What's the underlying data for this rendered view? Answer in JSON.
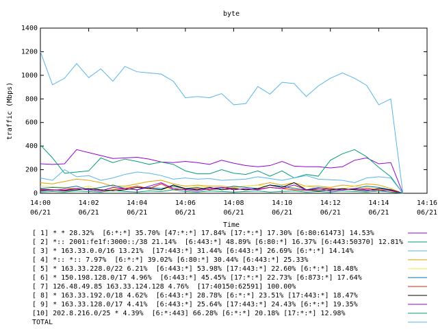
{
  "chart_data": {
    "type": "line",
    "title": "byte",
    "x_label": "Time",
    "y_label": "traffic (Mbps)",
    "xlim": [
      0,
      16
    ],
    "ylim": [
      0,
      1400
    ],
    "xticks": [
      {
        "value": 0,
        "label": [
          "14:00",
          "06/21"
        ]
      },
      {
        "value": 2,
        "label": [
          "14:02",
          "06/21"
        ]
      },
      {
        "value": 4,
        "label": [
          "14:04",
          "06/21"
        ]
      },
      {
        "value": 6,
        "label": [
          "14:06",
          "06/21"
        ]
      },
      {
        "value": 8,
        "label": [
          "14:08",
          "06/21"
        ]
      },
      {
        "value": 10,
        "label": [
          "14:10",
          "06/21"
        ]
      },
      {
        "value": 12,
        "label": [
          "14:12",
          "06/21"
        ]
      },
      {
        "value": 14,
        "label": [
          "14:14",
          "06/21"
        ]
      },
      {
        "value": 16,
        "label": [
          "14:16",
          "06/21"
        ]
      }
    ],
    "yticks": [
      0,
      200,
      400,
      600,
      800,
      1000,
      1200,
      1400
    ],
    "x": [
      0,
      0.5,
      1,
      1.5,
      2,
      2.5,
      3,
      3.5,
      4,
      4.5,
      5,
      5.5,
      6,
      6.5,
      7,
      7.5,
      8,
      8.5,
      9,
      9.5,
      10,
      10.5,
      11,
      11.5,
      12,
      12.5,
      13,
      13.5,
      14,
      14.5,
      15
    ],
    "series": [
      {
        "name": "[ 1] * * 28.32%  [6:*:*] 35.70% [47:*:*] 17.84% [17:*:*] 17.30% [6:80:61473] 14.53%",
        "color": "#9400d3",
        "values": [
          250,
          245,
          250,
          370,
          345,
          320,
          295,
          300,
          305,
          290,
          265,
          260,
          270,
          260,
          245,
          280,
          255,
          235,
          225,
          235,
          270,
          230,
          225,
          225,
          215,
          225,
          280,
          300,
          250,
          260,
          0
        ]
      },
      {
        "name": "[ 2] *:: 2001:fe1f:3000::/38 21.14%  [6:443:*] 48.89% [6:80:*] 16.37% [6:443:50370] 12.81%",
        "color": "#009e73",
        "values": [
          410,
          300,
          170,
          180,
          190,
          300,
          260,
          290,
          270,
          245,
          265,
          245,
          190,
          165,
          165,
          200,
          170,
          160,
          190,
          145,
          190,
          130,
          160,
          145,
          280,
          335,
          370,
          310,
          220,
          140,
          0
        ]
      },
      {
        "name": "[ 3] * 163.33.0.0/16 13.21%  [17:443:*] 31.44% [6:443:*] 26.69% [6:*:*] 14.14%",
        "color": "#56b4e9",
        "values": [
          130,
          110,
          200,
          140,
          150,
          110,
          130,
          160,
          180,
          170,
          150,
          120,
          130,
          120,
          125,
          110,
          115,
          120,
          140,
          125,
          110,
          130,
          150,
          120,
          115,
          110,
          90,
          130,
          140,
          130,
          0
        ]
      },
      {
        "name": "[ 4] *:: *:: 7.97%  [6:*:*] 39.02% [6:80:*] 30.44% [6:443:*] 25.33%",
        "color": "#e69f00",
        "values": [
          90,
          80,
          100,
          120,
          110,
          90,
          60,
          60,
          80,
          100,
          110,
          80,
          60,
          70,
          60,
          60,
          50,
          60,
          70,
          90,
          70,
          90,
          60,
          60,
          50,
          70,
          60,
          80,
          70,
          40,
          0
        ]
      },
      {
        "name": "[ 5] * 163.33.228.0/22 6.21%  [6:443:*] 53.98% [17:443:*] 22.60% [6:*:*] 18.48%",
        "color": "#f0e442",
        "values": [
          60,
          55,
          50,
          40,
          60,
          30,
          40,
          50,
          60,
          40,
          30,
          50,
          40,
          60,
          50,
          30,
          40,
          60,
          70,
          50,
          40,
          50,
          60,
          40,
          30,
          40,
          60,
          50,
          40,
          30,
          0
        ]
      },
      {
        "name": "[ 6] * 150.198.128.0/17 4.96%  [6:443:*] 45.45% [17:*:*] 22.73% [6:873:*] 17.64%",
        "color": "#0072b2",
        "values": [
          40,
          50,
          45,
          60,
          30,
          50,
          70,
          40,
          30,
          50,
          40,
          60,
          40,
          50,
          30,
          40,
          60,
          50,
          40,
          70,
          60,
          40,
          30,
          50,
          40,
          30,
          40,
          60,
          50,
          30,
          0
        ]
      },
      {
        "name": "[ 7] 126.48.49.85 163.33.124.128 4.76%  [17:40150:62591] 100.00%",
        "color": "#e51e10",
        "values": [
          30,
          25,
          35,
          40,
          30,
          20,
          30,
          40,
          60,
          40,
          80,
          30,
          35,
          40,
          30,
          50,
          40,
          30,
          35,
          50,
          40,
          30,
          25,
          35,
          40,
          30,
          35,
          40,
          30,
          20,
          0
        ]
      },
      {
        "name": "[ 8] * 163.33.192.0/18 4.62%  [6:443:*] 28.78% [6:*:*] 23.51% [17:443:*] 18.47%",
        "color": "#000000",
        "values": [
          20,
          30,
          20,
          30,
          40,
          30,
          20,
          30,
          50,
          40,
          30,
          70,
          40,
          30,
          50,
          30,
          40,
          30,
          40,
          70,
          50,
          90,
          30,
          20,
          30,
          40,
          30,
          20,
          40,
          30,
          0
        ]
      },
      {
        "name": "[ 9] * 163.33.128.0/17 4.41%  [6:443:*] 25.64% [17:443:*] 24.43% [6:*:*] 19.35%",
        "color": "#9400d3",
        "values": [
          35,
          30,
          25,
          40,
          30,
          20,
          50,
          40,
          30,
          60,
          90,
          40,
          30,
          20,
          40,
          50,
          30,
          40,
          30,
          50,
          40,
          70,
          30,
          40,
          20,
          30,
          40,
          30,
          20,
          25,
          0
        ]
      },
      {
        "name": "[10] 202.8.216.0/25 * 4.39%  [6:*:443] 66.28% [6:*:*] 20.18% [17:*:*] 12.98%",
        "color": "#009e73",
        "values": [
          10,
          15,
          10,
          20,
          15,
          10,
          25,
          15,
          10,
          20,
          15,
          30,
          15,
          10,
          20,
          15,
          10,
          15,
          20,
          10,
          15,
          20,
          10,
          15,
          10,
          20,
          15,
          10,
          20,
          10,
          0
        ]
      },
      {
        "name": "TOTAL",
        "color": "#56b4e9",
        "values": [
          1200,
          920,
          975,
          1100,
          980,
          1055,
          950,
          1075,
          1030,
          1020,
          1010,
          950,
          810,
          820,
          810,
          845,
          750,
          760,
          905,
          840,
          940,
          930,
          820,
          910,
          975,
          1020,
          975,
          915,
          750,
          800,
          0
        ]
      }
    ]
  }
}
